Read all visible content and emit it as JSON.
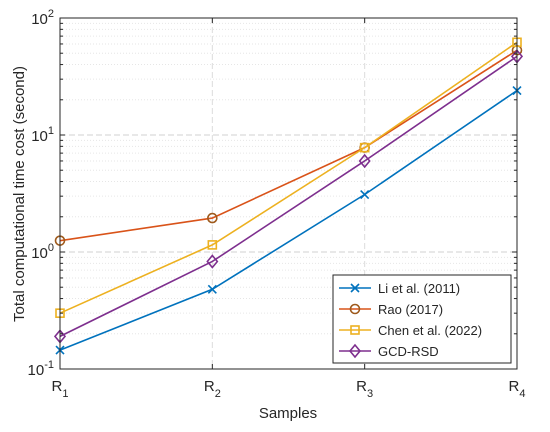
{
  "chart_data": {
    "type": "line",
    "title": "",
    "xlabel": "Samples",
    "ylabel": "Total computational time cost (second)",
    "yscale": "log",
    "ylim": [
      0.1,
      100
    ],
    "yticks": [
      {
        "value": 0.1,
        "base": "10",
        "exp": "-1"
      },
      {
        "value": 1,
        "base": "10",
        "exp": "0"
      },
      {
        "value": 10,
        "base": "10",
        "exp": "1"
      },
      {
        "value": 100,
        "base": "10",
        "exp": "2"
      }
    ],
    "categories": [
      {
        "base": "R",
        "sub": "1"
      },
      {
        "base": "R",
        "sub": "2"
      },
      {
        "base": "R",
        "sub": "3"
      },
      {
        "base": "R",
        "sub": "4"
      }
    ],
    "grid": true,
    "legend_position": "bottom-right",
    "series": [
      {
        "name": "Li et al. (2011)",
        "color": "#0072BD",
        "marker": "x",
        "values": [
          0.145,
          0.48,
          3.1,
          24
        ]
      },
      {
        "name": "Rao (2017)",
        "color": "#D95319",
        "line_color": "#D95319",
        "marker_color": "#9E5A1C",
        "marker": "circle",
        "values": [
          1.25,
          1.95,
          7.8,
          53
        ]
      },
      {
        "name": "Chen et al. (2022)",
        "color": "#EDB120",
        "marker": "square",
        "values": [
          0.3,
          1.15,
          7.8,
          62
        ]
      },
      {
        "name": "GCD-RSD",
        "color": "#7E2F8E",
        "marker": "diamond",
        "values": [
          0.19,
          0.83,
          6.0,
          47
        ]
      }
    ]
  }
}
